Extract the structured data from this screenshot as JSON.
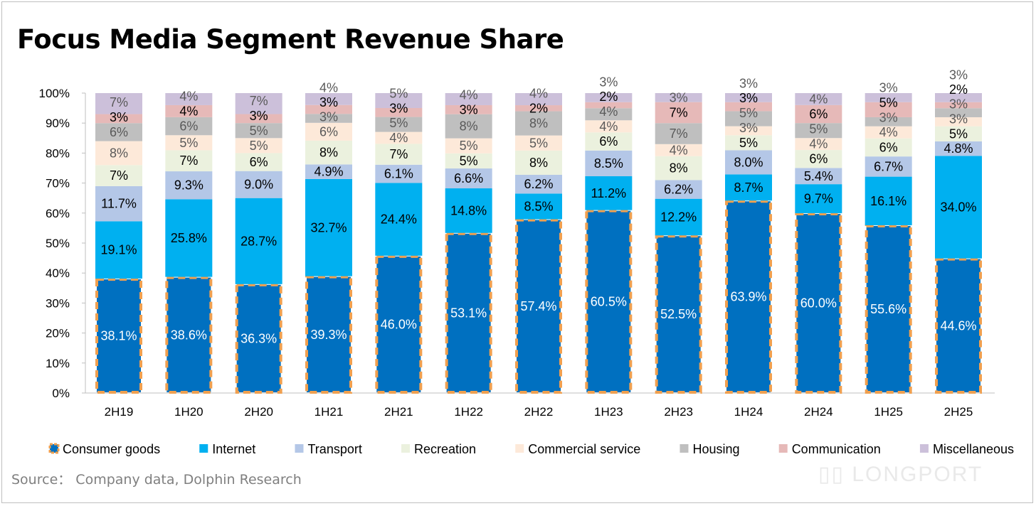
{
  "title": "Focus Media Segment Revenue Share",
  "source": "Source：  Company data, Dolphin Research",
  "watermark": "LONGPORT",
  "chart_data": {
    "type": "bar",
    "stacked": "percent",
    "title": "Focus Media Segment Revenue Share",
    "categories": [
      "2H19",
      "1H20",
      "2H20",
      "1H21",
      "2H21",
      "1H22",
      "2H22",
      "1H23",
      "2H23",
      "1H24",
      "2H24",
      "1H25",
      "2H25"
    ],
    "ylim": [
      0,
      100
    ],
    "yticks": [
      "0%",
      "10%",
      "20%",
      "30%",
      "40%",
      "50%",
      "60%",
      "70%",
      "80%",
      "90%",
      "100%"
    ],
    "grid": false,
    "legend": "bottom",
    "series": [
      {
        "name": "Consumer goods",
        "color": "#0070C0",
        "border": "#F0A050",
        "label_color": "#ffffff",
        "labels": [
          "38.1%",
          "38.6%",
          "36.3%",
          "39.3%",
          "46.0%",
          "53.1%",
          "57.4%",
          "60.5%",
          "52.5%",
          "63.9%",
          "60.0%",
          "55.6%",
          "44.6%"
        ],
        "values": [
          38.1,
          38.6,
          36.3,
          39.3,
          46.0,
          53.1,
          57.4,
          60.5,
          52.5,
          63.9,
          60.0,
          55.6,
          44.6
        ]
      },
      {
        "name": "Internet",
        "color": "#00B0F0",
        "label_color": "#000000",
        "labels": [
          "19.1%",
          "25.8%",
          "28.7%",
          "32.7%",
          "24.4%",
          "14.8%",
          "8.5%",
          "11.2%",
          "12.2%",
          "8.7%",
          "9.7%",
          "16.1%",
          "34.0%"
        ],
        "values": [
          19.1,
          25.8,
          28.7,
          32.7,
          24.4,
          14.8,
          8.5,
          11.2,
          12.2,
          8.7,
          9.7,
          16.1,
          34.0
        ]
      },
      {
        "name": "Transport",
        "color": "#B4C7E7",
        "label_color": "#000000",
        "labels": [
          "11.7%",
          "9.3%",
          "9.0%",
          "4.9%",
          "6.1%",
          "6.6%",
          "6.2%",
          "8.5%",
          "6.2%",
          "8.0%",
          "5.4%",
          "6.7%",
          "4.8%"
        ],
        "values": [
          11.7,
          9.3,
          9.0,
          4.9,
          6.1,
          6.6,
          6.2,
          8.5,
          6.2,
          8.0,
          5.4,
          6.7,
          4.8
        ]
      },
      {
        "name": "Recreation",
        "color": "#EBF1DE",
        "label_color": "#000000",
        "labels": [
          "7%",
          "7%",
          "6%",
          "8%",
          "7%",
          "5%",
          "8%",
          "6%",
          "8%",
          "5%",
          "6%",
          "6%",
          "5%"
        ],
        "values": [
          7,
          7,
          6,
          8,
          7,
          5,
          8,
          6,
          8,
          5,
          6,
          6,
          5
        ]
      },
      {
        "name": "Commercial service",
        "color": "#FDE9D9",
        "label_color": "#595959",
        "labels": [
          "8%",
          "5%",
          "5%",
          "6%",
          "4%",
          "5%",
          "5%",
          "4%",
          "4%",
          "3%",
          "4%",
          "4%",
          "3%"
        ],
        "values": [
          8,
          5,
          5,
          6,
          4,
          5,
          5,
          4,
          4,
          3,
          4,
          4,
          3
        ]
      },
      {
        "name": "Housing",
        "color": "#BFBFBF",
        "label_color": "#595959",
        "labels": [
          "6%",
          "6%",
          "5%",
          "3%",
          "5%",
          "8%",
          "8%",
          "4%",
          "7%",
          "5%",
          "5%",
          "3%",
          "3%"
        ],
        "values": [
          6,
          6,
          5,
          3,
          5,
          8,
          8,
          4,
          7,
          5,
          5,
          3,
          3
        ]
      },
      {
        "name": "Communication",
        "color": "#E6B9B8",
        "label_color": "#000000",
        "labels": [
          "3%",
          "4%",
          "3%",
          "3%",
          "3%",
          "3%",
          "2%",
          "2%",
          "7%",
          "3%",
          "6%",
          "5%",
          "2%"
        ],
        "values": [
          3,
          4,
          3,
          3,
          3,
          3,
          2,
          2,
          7,
          3,
          6,
          5,
          2
        ]
      },
      {
        "name": "Miscellaneous",
        "color": "#CCC0DA",
        "label_color": "#595959",
        "labels": [
          "7%",
          "4%",
          "7%",
          "4%",
          "5%",
          "4%",
          "4%",
          "3%",
          "3%",
          "3%",
          "4%",
          "3%",
          "3%"
        ],
        "values": [
          7,
          4,
          7,
          4,
          5,
          4,
          4,
          3,
          3,
          3,
          4,
          3,
          3
        ]
      }
    ]
  }
}
